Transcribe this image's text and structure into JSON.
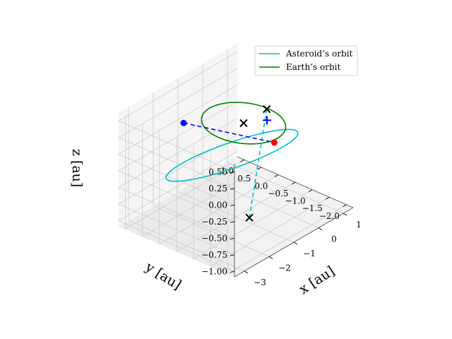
{
  "chart_data": {
    "type": "line",
    "projection": "3d",
    "legend_position": "top-right",
    "grid": true,
    "xlabel": "x [au]",
    "ylabel": "y [au]",
    "zlabel": "z [au]",
    "xlim": [
      -3.4,
      1.4
    ],
    "ylim": [
      -2.2,
      1.2
    ],
    "zlim": [
      -1.08,
      0.62
    ],
    "xticks": [
      {
        "value": -3,
        "label": "−3"
      },
      {
        "value": -2,
        "label": "−2"
      },
      {
        "value": -1,
        "label": "−1"
      },
      {
        "value": 0,
        "label": "0"
      },
      {
        "value": 1,
        "label": "1"
      }
    ],
    "yticks": [
      {
        "value": 1.0,
        "label": "1.0"
      },
      {
        "value": 0.5,
        "label": "0.5"
      },
      {
        "value": 0.0,
        "label": "0.0"
      },
      {
        "value": -0.5,
        "label": "−0.5"
      },
      {
        "value": -1.0,
        "label": "−1.0"
      },
      {
        "value": -1.5,
        "label": "−1.5"
      },
      {
        "value": -2.0,
        "label": "−2.0"
      }
    ],
    "zticks": [
      {
        "value": 0.5,
        "label": "0.50"
      },
      {
        "value": 0.25,
        "label": "0.25"
      },
      {
        "value": 0.0,
        "label": "0.00"
      },
      {
        "value": -0.25,
        "label": "−0.25"
      },
      {
        "value": -0.5,
        "label": "−0.50"
      },
      {
        "value": -0.75,
        "label": "−0.75"
      },
      {
        "value": -1.0,
        "label": "−1.00"
      }
    ],
    "series": [
      {
        "name": "Asteroid’s orbit",
        "color": "#00bfbf",
        "ellipse": {
          "center": [
            -0.95,
            -0.35,
            -0.2
          ],
          "u": [
            0.6,
            -1.5,
            0.55
          ],
          "v": [
            -0.75,
            -0.45,
            0.45
          ]
        }
      },
      {
        "name": "Earth’s orbit",
        "color": "#008000",
        "ellipse": {
          "center": [
            0.0,
            0.0,
            0.0
          ],
          "u": [
            1.0,
            0.0,
            0.0
          ],
          "v": [
            0.0,
            1.0,
            0.0
          ]
        }
      }
    ],
    "lines": [
      {
        "from": [
          -1.93,
          0.36,
          0.34
        ],
        "to": [
          0.03,
          -0.88,
          -0.1
        ],
        "color": "#0000ff",
        "style": "dashed"
      },
      {
        "from": [
          0.8,
          -0.1,
          0.06
        ],
        "to": [
          -1.35,
          -1.15,
          -0.87
        ],
        "color": "#00bfbf",
        "style": "dashed"
      }
    ],
    "points": [
      {
        "position": [
          -1.93,
          0.36,
          0.34
        ],
        "marker": "dot",
        "color": "#0000ff"
      },
      {
        "position": [
          0.03,
          -0.88,
          -0.1
        ],
        "marker": "dot",
        "color": "#ff0000"
      },
      {
        "position": [
          0.8,
          -0.1,
          0.06
        ],
        "marker": "x",
        "color": "#000000"
      },
      {
        "position": [
          -1.35,
          -1.15,
          -0.87
        ],
        "marker": "x",
        "color": "#000000"
      },
      {
        "position": [
          0.0,
          0.0,
          0.0
        ],
        "marker": "x",
        "color": "#000000"
      },
      {
        "position": [
          0.52,
          -0.31,
          0.0
        ],
        "marker": "plus",
        "color": "#0000ff"
      }
    ],
    "colors": {
      "pane": "#f2f2f2",
      "grid": "#cccccc",
      "edge": "#555555"
    }
  }
}
